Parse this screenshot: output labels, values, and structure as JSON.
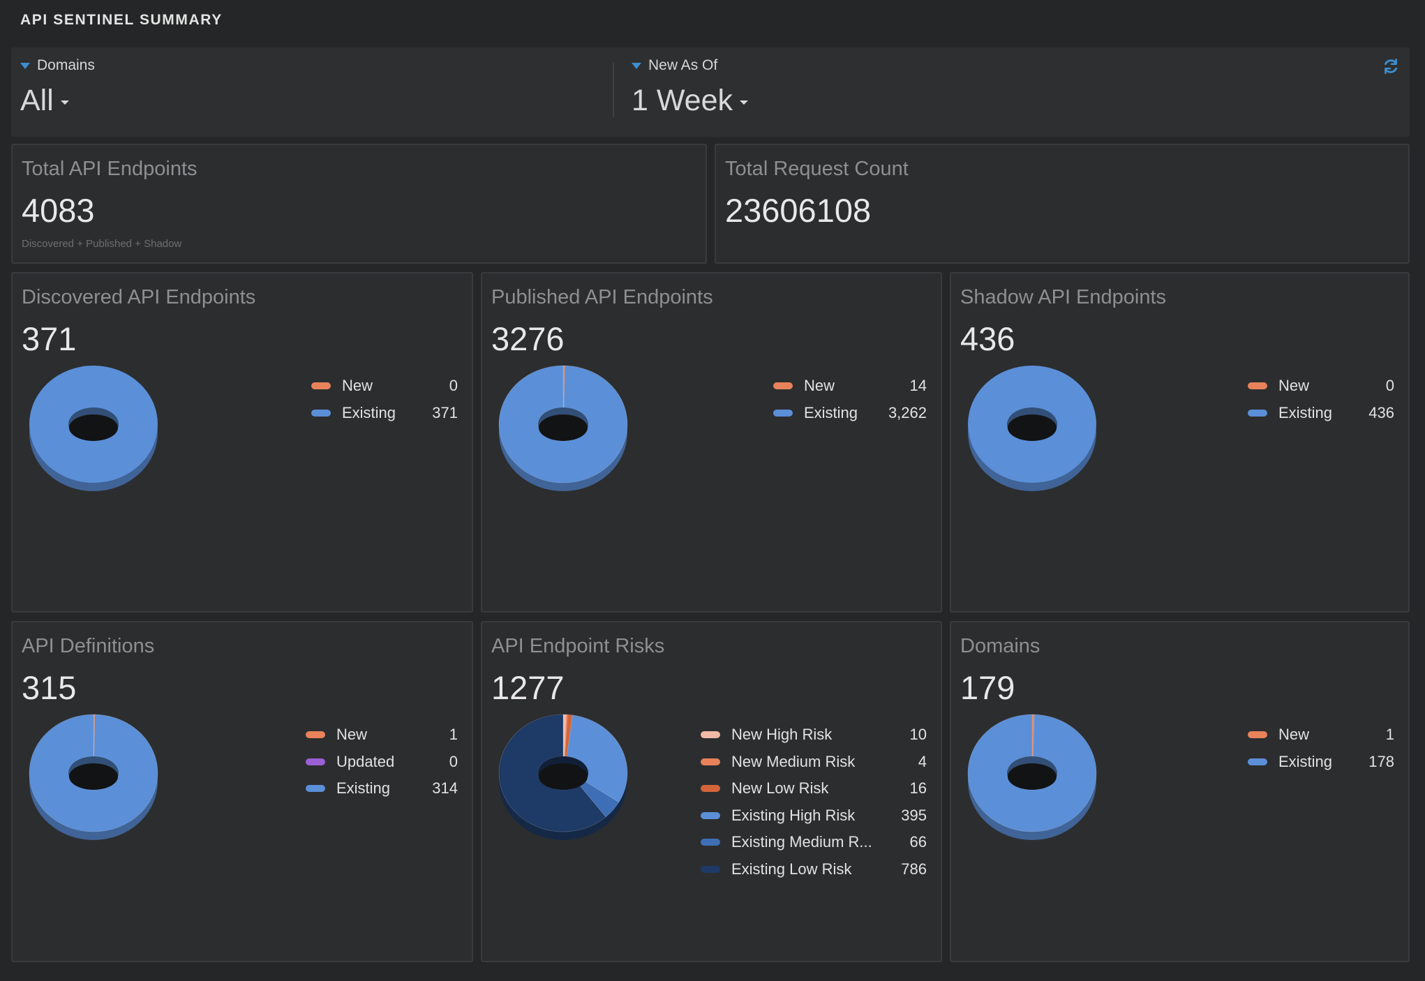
{
  "title": "API SENTINEL SUMMARY",
  "filters": {
    "domains": {
      "label": "Domains",
      "value": "All"
    },
    "new_as_of": {
      "label": "New As Of",
      "value": "1 Week"
    }
  },
  "summary": {
    "total_endpoints": {
      "title": "Total API Endpoints",
      "value": "4083",
      "subtitle": "Discovered + Published + Shadow"
    },
    "total_requests": {
      "title": "Total Request Count",
      "value": "23606108"
    }
  },
  "cards": {
    "discovered": {
      "title": "Discovered API Endpoints",
      "value": "371",
      "legend": [
        {
          "label": "New",
          "value": "0",
          "color": "#e8825a"
        },
        {
          "label": "Existing",
          "value": "371",
          "color": "#5b8fd8"
        }
      ]
    },
    "published": {
      "title": "Published API Endpoints",
      "value": "3276",
      "legend": [
        {
          "label": "New",
          "value": "14",
          "color": "#e8825a"
        },
        {
          "label": "Existing",
          "value": "3,262",
          "color": "#5b8fd8"
        }
      ]
    },
    "shadow": {
      "title": "Shadow API Endpoints",
      "value": "436",
      "legend": [
        {
          "label": "New",
          "value": "0",
          "color": "#e8825a"
        },
        {
          "label": "Existing",
          "value": "436",
          "color": "#5b8fd8"
        }
      ]
    },
    "definitions": {
      "title": "API Definitions",
      "value": "315",
      "legend": [
        {
          "label": "New",
          "value": "1",
          "color": "#e8825a"
        },
        {
          "label": "Updated",
          "value": "0",
          "color": "#9b5fd6"
        },
        {
          "label": "Existing",
          "value": "314",
          "color": "#5b8fd8"
        }
      ]
    },
    "risks": {
      "title": "API Endpoint Risks",
      "value": "1277",
      "legend": [
        {
          "label": "New High Risk",
          "value": "10",
          "color": "#f3b9a6"
        },
        {
          "label": "New Medium Risk",
          "value": "4",
          "color": "#e8825a"
        },
        {
          "label": "New Low Risk",
          "value": "16",
          "color": "#d4653a"
        },
        {
          "label": "Existing High Risk",
          "value": "395",
          "color": "#5b8fd8"
        },
        {
          "label": "Existing Medium R...",
          "value": "66",
          "color": "#3e6fb6"
        },
        {
          "label": "Existing Low Risk",
          "value": "786",
          "color": "#1e3a66"
        }
      ]
    },
    "domains": {
      "title": "Domains",
      "value": "179",
      "legend": [
        {
          "label": "New",
          "value": "1",
          "color": "#e8825a"
        },
        {
          "label": "Existing",
          "value": "178",
          "color": "#5b8fd8"
        }
      ]
    }
  },
  "chart_data": [
    {
      "type": "pie",
      "title": "Discovered API Endpoints",
      "categories": [
        "New",
        "Existing"
      ],
      "values": [
        0,
        371
      ]
    },
    {
      "type": "pie",
      "title": "Published API Endpoints",
      "categories": [
        "New",
        "Existing"
      ],
      "values": [
        14,
        3262
      ]
    },
    {
      "type": "pie",
      "title": "Shadow API Endpoints",
      "categories": [
        "New",
        "Existing"
      ],
      "values": [
        0,
        436
      ]
    },
    {
      "type": "pie",
      "title": "API Definitions",
      "categories": [
        "New",
        "Updated",
        "Existing"
      ],
      "values": [
        1,
        0,
        314
      ]
    },
    {
      "type": "pie",
      "title": "API Endpoint Risks",
      "categories": [
        "New High Risk",
        "New Medium Risk",
        "New Low Risk",
        "Existing High Risk",
        "Existing Medium R...",
        "Existing Low Risk"
      ],
      "values": [
        10,
        4,
        16,
        395,
        66,
        786
      ]
    },
    {
      "type": "pie",
      "title": "Domains",
      "categories": [
        "New",
        "Existing"
      ],
      "values": [
        1,
        178
      ]
    }
  ]
}
